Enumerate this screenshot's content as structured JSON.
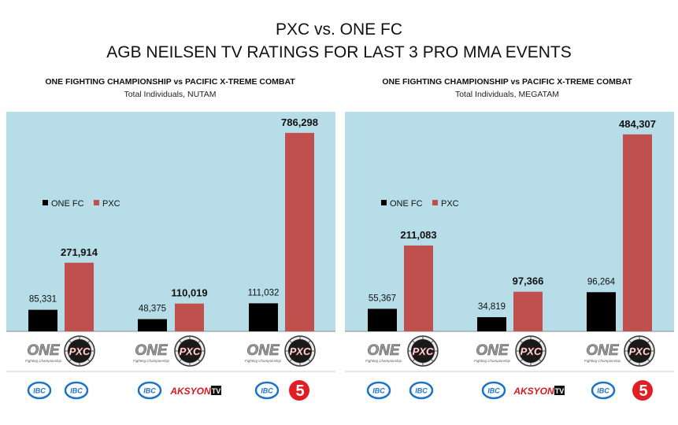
{
  "header": {
    "title_line1": "PXC vs. ONE FC",
    "title_line2": "AGB NEILSEN TV RATINGS FOR LAST 3 PRO MMA EVENTS"
  },
  "colors": {
    "one_fc": "#000000",
    "pxc": "#c0504d",
    "plot_bg": "#b7dde8",
    "network_blue": "#1d74c6",
    "tv5_red": "#e01e24"
  },
  "logos": {
    "row1": [
      "ONE",
      "PXC"
    ],
    "one_caption": "Fighting Championship",
    "row2": [
      [
        "IBC",
        "IBC"
      ],
      [
        "IBC",
        "AKSYONTV"
      ],
      [
        "IBC",
        "5"
      ]
    ]
  },
  "chart_data": [
    {
      "type": "bar",
      "title": "ONE FIGHTING  CHAMPIONSHIP  vs PACIFIC  X-TREME  COMBAT",
      "subtitle": "Total Individuals, NUTAM",
      "legend_position": "upper-left",
      "ylim": [
        0,
        870000
      ],
      "categories": [
        "",
        "",
        ""
      ],
      "series": [
        {
          "name": "ONE FC",
          "values": [
            85331,
            48375,
            111032
          ],
          "labels": [
            "85,331",
            "48,375",
            "111,032"
          ]
        },
        {
          "name": "PXC",
          "values": [
            271914,
            110019,
            786298
          ],
          "labels": [
            "271,914",
            "110,019",
            "786,298"
          ]
        }
      ]
    },
    {
      "type": "bar",
      "title": "ONE FIGHTING  CHAMPIONSHIP  vs PACIFIC  X-TREME  COMBAT",
      "subtitle": "Total Individuals, MEGATAM",
      "legend_position": "upper-left",
      "ylim": [
        0,
        540000
      ],
      "categories": [
        "",
        "",
        ""
      ],
      "series": [
        {
          "name": "ONE FC",
          "values": [
            55367,
            34819,
            96264
          ],
          "labels": [
            "55,367",
            "34,819",
            "96,264"
          ]
        },
        {
          "name": "PXC",
          "values": [
            211083,
            97366,
            484307
          ],
          "labels": [
            "211,083",
            "97,366",
            "484,307"
          ]
        }
      ]
    }
  ]
}
